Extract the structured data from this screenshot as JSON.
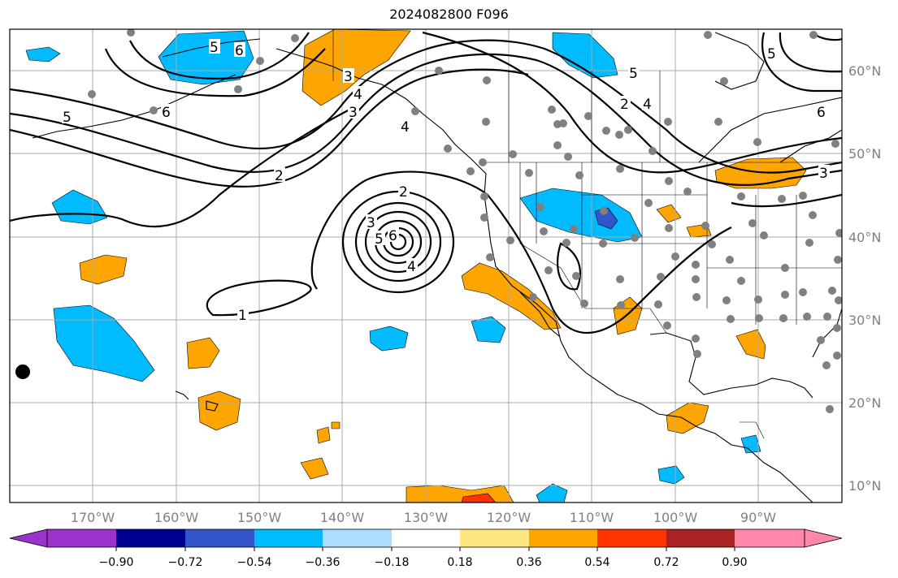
{
  "title": "2024082800 F096",
  "longitude_labels": [
    "170°W",
    "160°W",
    "150°W",
    "140°W",
    "130°W",
    "120°W",
    "110°W",
    "100°W",
    "90°W"
  ],
  "latitude_labels": [
    "60°N",
    "50°N",
    "40°N",
    "30°N",
    "20°N",
    "10°N"
  ],
  "colorbar": {
    "ticks": [
      "−0.90",
      "−0.72",
      "−0.54",
      "−0.36",
      "−0.18",
      "0.18",
      "0.36",
      "0.54",
      "0.72",
      "0.90"
    ],
    "colors": [
      "#9933cc",
      "#000090",
      "#3355cc",
      "#00bbff",
      "#aaddff",
      "#ffffff",
      "#ffe680",
      "#ffa500",
      "#ff3300",
      "#aa2222",
      "#ff88aa"
    ]
  },
  "contour_labels": [
    "5",
    "6",
    "5",
    "6",
    "4",
    "3",
    "4",
    "3",
    "2",
    "5",
    "2",
    "4",
    "5",
    "6",
    "3",
    "2",
    "3",
    "6",
    "5",
    "4",
    "1"
  ],
  "colors": {
    "positive_fill": "#ffa500",
    "negative_fill": "#00bbff",
    "station_dot": "#808080",
    "grid": "#aaaaaa",
    "label": "#808080"
  }
}
